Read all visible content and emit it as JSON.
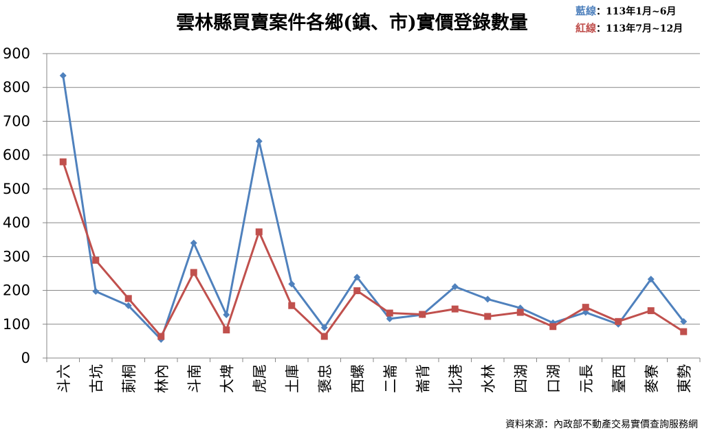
{
  "chart_data": {
    "type": "line",
    "title": "雲林縣買賣案件各鄉(鎮、市)實價登錄數量",
    "legend": {
      "placement": "top-right",
      "entries": [
        {
          "prefix": "藍線",
          "rest": "：113年1月~6月"
        },
        {
          "prefix": "紅線",
          "rest": "：113年7月~12月"
        }
      ]
    },
    "source": "資料來源：內政部不動產交易實價查詢服務網",
    "categories": [
      "斗六",
      "古坑",
      "莿桐",
      "林內",
      "斗南",
      "大埤",
      "虎尾",
      "土庫",
      "褒忠",
      "西螺",
      "二崙",
      "崙背",
      "北港",
      "水林",
      "四湖",
      "口湖",
      "元長",
      "臺西",
      "麥寮",
      "東勢"
    ],
    "ylim": [
      0,
      900
    ],
    "yticks": [
      "0",
      "100",
      "200",
      "300",
      "400",
      "500",
      "600",
      "700",
      "800",
      "900"
    ],
    "grid": true,
    "colors": {
      "blue": "#4f81bd",
      "red": "#c0504d"
    },
    "series": [
      {
        "color": "#4f81bd",
        "marker": "diamond",
        "values": [
          835,
          197,
          155,
          55,
          340,
          128,
          641,
          219,
          90,
          239,
          116,
          128,
          211,
          174,
          148,
          104,
          135,
          100,
          233,
          108
        ]
      },
      {
        "color": "#c0504d",
        "marker": "square",
        "values": [
          580,
          289,
          176,
          64,
          253,
          83,
          373,
          155,
          64,
          199,
          133,
          129,
          145,
          123,
          135,
          93,
          150,
          108,
          140,
          78
        ]
      }
    ]
  }
}
